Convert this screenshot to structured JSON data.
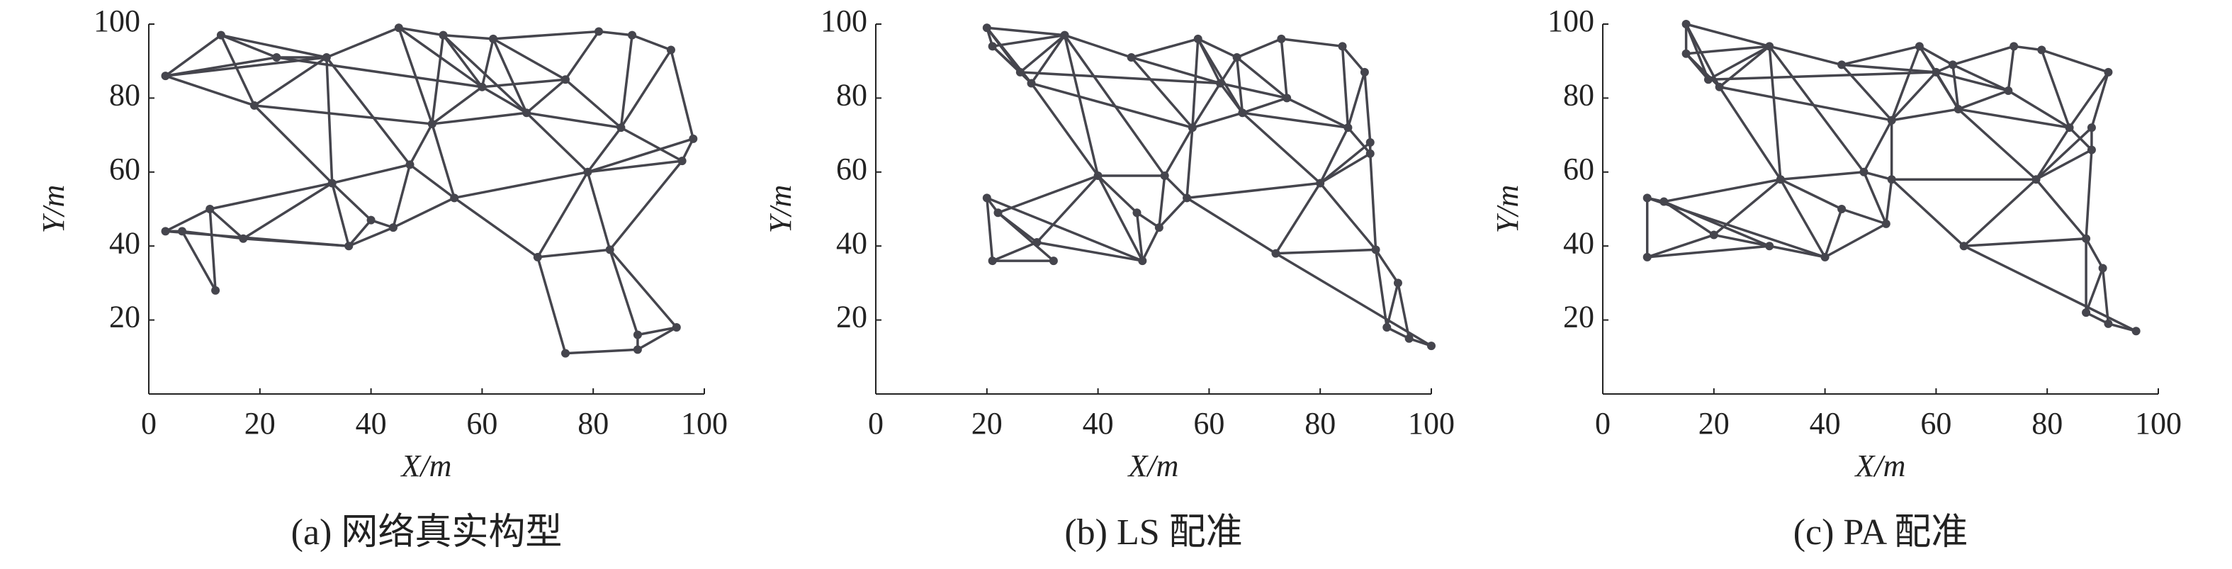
{
  "chart_data": [
    {
      "type": "network",
      "caption": "(a) 网络真实构型",
      "xlabel": "X/m",
      "ylabel": "Y/m",
      "color": "#45454d",
      "xlim": [
        0,
        100
      ],
      "ylim": [
        0,
        100
      ],
      "xticks": [
        0,
        20,
        40,
        60,
        80,
        100
      ],
      "yticks": [
        20,
        40,
        60,
        80,
        100
      ],
      "x": [
        3,
        13,
        23,
        32,
        45,
        53,
        62,
        81,
        87,
        94,
        98,
        96,
        19,
        33,
        11,
        3,
        6,
        12,
        17,
        36,
        44,
        47,
        51,
        68,
        79,
        70,
        83,
        95,
        88,
        88,
        75,
        60,
        75,
        55,
        85,
        40
      ],
      "y": [
        86,
        97,
        91,
        91,
        99,
        97,
        96,
        98,
        97,
        93,
        69,
        63,
        78,
        57,
        50,
        44,
        44,
        28,
        42,
        40,
        45,
        62,
        73,
        76,
        60,
        37,
        39,
        18,
        16,
        12,
        11,
        83,
        85,
        53,
        72,
        47
      ],
      "edges": [
        [
          0,
          1
        ],
        [
          0,
          2
        ],
        [
          0,
          12
        ],
        [
          0,
          3
        ],
        [
          1,
          2
        ],
        [
          1,
          3
        ],
        [
          1,
          12
        ],
        [
          2,
          3
        ],
        [
          3,
          4
        ],
        [
          3,
          12
        ],
        [
          3,
          13
        ],
        [
          4,
          5
        ],
        [
          4,
          22
        ],
        [
          4,
          31
        ],
        [
          5,
          6
        ],
        [
          5,
          31
        ],
        [
          5,
          22
        ],
        [
          6,
          7
        ],
        [
          6,
          31
        ],
        [
          6,
          23
        ],
        [
          7,
          8
        ],
        [
          8,
          9
        ],
        [
          7,
          32
        ],
        [
          9,
          10
        ],
        [
          9,
          34
        ],
        [
          8,
          34
        ],
        [
          10,
          11
        ],
        [
          11,
          34
        ],
        [
          10,
          24
        ],
        [
          11,
          24
        ],
        [
          12,
          13
        ],
        [
          13,
          14
        ],
        [
          13,
          19
        ],
        [
          13,
          21
        ],
        [
          13,
          35
        ],
        [
          14,
          15
        ],
        [
          14,
          17
        ],
        [
          14,
          18
        ],
        [
          15,
          16
        ],
        [
          16,
          17
        ],
        [
          16,
          18
        ],
        [
          15,
          19
        ],
        [
          18,
          19
        ],
        [
          19,
          20
        ],
        [
          19,
          35
        ],
        [
          20,
          21
        ],
        [
          20,
          33
        ],
        [
          20,
          35
        ],
        [
          21,
          22
        ],
        [
          21,
          33
        ],
        [
          22,
          31
        ],
        [
          22,
          23
        ],
        [
          23,
          31
        ],
        [
          23,
          32
        ],
        [
          23,
          24
        ],
        [
          23,
          34
        ],
        [
          24,
          25
        ],
        [
          24,
          26
        ],
        [
          24,
          34
        ],
        [
          25,
          26
        ],
        [
          25,
          30
        ],
        [
          26,
          28
        ],
        [
          26,
          27
        ],
        [
          27,
          28
        ],
        [
          27,
          29
        ],
        [
          28,
          29
        ],
        [
          29,
          30
        ],
        [
          25,
          33
        ],
        [
          32,
          34
        ],
        [
          6,
          32
        ],
        [
          22,
          33
        ],
        [
          33,
          24
        ],
        [
          5,
          23
        ],
        [
          3,
          21
        ],
        [
          12,
          22
        ],
        [
          2,
          31
        ],
        [
          11,
          26
        ],
        [
          31,
          32
        ],
        [
          18,
          13
        ]
      ]
    },
    {
      "type": "network",
      "caption": "(b) LS 配准",
      "xlabel": "X/m",
      "ylabel": "Y/m",
      "color": "#45454d",
      "xlim": [
        0,
        100
      ],
      "ylim": [
        0,
        100
      ],
      "xticks": [
        0,
        20,
        40,
        60,
        80,
        100
      ],
      "yticks": [
        20,
        40,
        60,
        80,
        100
      ],
      "x": [
        20,
        21,
        26,
        34,
        46,
        58,
        65,
        73,
        84,
        88,
        89,
        89,
        28,
        40,
        22,
        20,
        21,
        32,
        29,
        48,
        51,
        52,
        57,
        66,
        80,
        72,
        90,
        94,
        92,
        96,
        100,
        62,
        74,
        56,
        85,
        47
      ],
      "y": [
        99,
        94,
        87,
        97,
        91,
        96,
        91,
        96,
        94,
        87,
        68,
        65,
        84,
        59,
        49,
        53,
        36,
        36,
        41,
        36,
        45,
        59,
        72,
        76,
        57,
        38,
        39,
        30,
        18,
        15,
        13,
        84,
        80,
        53,
        72,
        49
      ],
      "edges": [
        [
          0,
          1
        ],
        [
          0,
          2
        ],
        [
          0,
          12
        ],
        [
          0,
          3
        ],
        [
          1,
          2
        ],
        [
          1,
          3
        ],
        [
          1,
          12
        ],
        [
          2,
          3
        ],
        [
          3,
          4
        ],
        [
          3,
          12
        ],
        [
          3,
          13
        ],
        [
          4,
          5
        ],
        [
          4,
          22
        ],
        [
          4,
          31
        ],
        [
          5,
          6
        ],
        [
          5,
          31
        ],
        [
          5,
          22
        ],
        [
          6,
          7
        ],
        [
          6,
          31
        ],
        [
          6,
          23
        ],
        [
          7,
          8
        ],
        [
          8,
          9
        ],
        [
          7,
          32
        ],
        [
          9,
          10
        ],
        [
          9,
          34
        ],
        [
          8,
          34
        ],
        [
          10,
          11
        ],
        [
          11,
          34
        ],
        [
          10,
          24
        ],
        [
          11,
          24
        ],
        [
          12,
          13
        ],
        [
          13,
          14
        ],
        [
          13,
          19
        ],
        [
          13,
          21
        ],
        [
          13,
          35
        ],
        [
          14,
          15
        ],
        [
          14,
          17
        ],
        [
          14,
          18
        ],
        [
          15,
          16
        ],
        [
          16,
          17
        ],
        [
          16,
          18
        ],
        [
          15,
          19
        ],
        [
          18,
          19
        ],
        [
          19,
          20
        ],
        [
          19,
          35
        ],
        [
          20,
          21
        ],
        [
          20,
          33
        ],
        [
          20,
          35
        ],
        [
          21,
          22
        ],
        [
          21,
          33
        ],
        [
          22,
          31
        ],
        [
          22,
          23
        ],
        [
          23,
          31
        ],
        [
          23,
          32
        ],
        [
          23,
          24
        ],
        [
          23,
          34
        ],
        [
          24,
          25
        ],
        [
          24,
          26
        ],
        [
          24,
          34
        ],
        [
          25,
          26
        ],
        [
          25,
          30
        ],
        [
          26,
          28
        ],
        [
          26,
          27
        ],
        [
          27,
          28
        ],
        [
          27,
          29
        ],
        [
          28,
          29
        ],
        [
          29,
          30
        ],
        [
          25,
          33
        ],
        [
          32,
          34
        ],
        [
          6,
          32
        ],
        [
          22,
          33
        ],
        [
          33,
          24
        ],
        [
          5,
          23
        ],
        [
          3,
          21
        ],
        [
          12,
          22
        ],
        [
          2,
          31
        ],
        [
          11,
          26
        ],
        [
          31,
          32
        ],
        [
          18,
          13
        ]
      ]
    },
    {
      "type": "network",
      "caption": "(c) PA 配准",
      "xlabel": "X/m",
      "ylabel": "Y/m",
      "color": "#45454d",
      "xlim": [
        0,
        100
      ],
      "ylim": [
        0,
        100
      ],
      "xticks": [
        0,
        20,
        40,
        60,
        80,
        100
      ],
      "yticks": [
        20,
        40,
        60,
        80,
        100
      ],
      "x": [
        15,
        15,
        19,
        30,
        43,
        57,
        63,
        74,
        79,
        91,
        88,
        88,
        21,
        32,
        11,
        8,
        8,
        30,
        20,
        40,
        51,
        47,
        52,
        64,
        78,
        65,
        87,
        90,
        87,
        91,
        96,
        60,
        73,
        52,
        84,
        43
      ],
      "y": [
        100,
        92,
        85,
        94,
        89,
        94,
        89,
        94,
        93,
        87,
        72,
        66,
        83,
        58,
        52,
        53,
        37,
        40,
        43,
        37,
        46,
        60,
        74,
        77,
        58,
        40,
        42,
        34,
        22,
        19,
        17,
        87,
        82,
        58,
        72,
        50
      ],
      "edges": [
        [
          0,
          1
        ],
        [
          0,
          2
        ],
        [
          0,
          12
        ],
        [
          0,
          3
        ],
        [
          1,
          2
        ],
        [
          1,
          3
        ],
        [
          1,
          12
        ],
        [
          2,
          3
        ],
        [
          3,
          4
        ],
        [
          3,
          12
        ],
        [
          3,
          13
        ],
        [
          4,
          5
        ],
        [
          4,
          22
        ],
        [
          4,
          31
        ],
        [
          5,
          6
        ],
        [
          5,
          31
        ],
        [
          5,
          22
        ],
        [
          6,
          7
        ],
        [
          6,
          31
        ],
        [
          6,
          23
        ],
        [
          7,
          8
        ],
        [
          8,
          9
        ],
        [
          7,
          32
        ],
        [
          9,
          10
        ],
        [
          9,
          34
        ],
        [
          8,
          34
        ],
        [
          10,
          11
        ],
        [
          11,
          34
        ],
        [
          10,
          24
        ],
        [
          11,
          24
        ],
        [
          12,
          13
        ],
        [
          13,
          14
        ],
        [
          13,
          19
        ],
        [
          13,
          21
        ],
        [
          13,
          35
        ],
        [
          14,
          15
        ],
        [
          14,
          17
        ],
        [
          14,
          18
        ],
        [
          15,
          16
        ],
        [
          16,
          17
        ],
        [
          16,
          18
        ],
        [
          15,
          19
        ],
        [
          18,
          19
        ],
        [
          19,
          20
        ],
        [
          19,
          35
        ],
        [
          20,
          21
        ],
        [
          20,
          33
        ],
        [
          20,
          35
        ],
        [
          21,
          22
        ],
        [
          21,
          33
        ],
        [
          22,
          31
        ],
        [
          22,
          23
        ],
        [
          23,
          31
        ],
        [
          23,
          32
        ],
        [
          23,
          24
        ],
        [
          23,
          34
        ],
        [
          24,
          25
        ],
        [
          24,
          26
        ],
        [
          24,
          34
        ],
        [
          25,
          26
        ],
        [
          25,
          30
        ],
        [
          26,
          28
        ],
        [
          26,
          27
        ],
        [
          27,
          28
        ],
        [
          27,
          29
        ],
        [
          28,
          29
        ],
        [
          29,
          30
        ],
        [
          25,
          33
        ],
        [
          32,
          34
        ],
        [
          6,
          32
        ],
        [
          22,
          33
        ],
        [
          33,
          24
        ],
        [
          5,
          23
        ],
        [
          3,
          21
        ],
        [
          12,
          22
        ],
        [
          2,
          31
        ],
        [
          11,
          26
        ],
        [
          31,
          32
        ],
        [
          18,
          13
        ]
      ]
    }
  ]
}
